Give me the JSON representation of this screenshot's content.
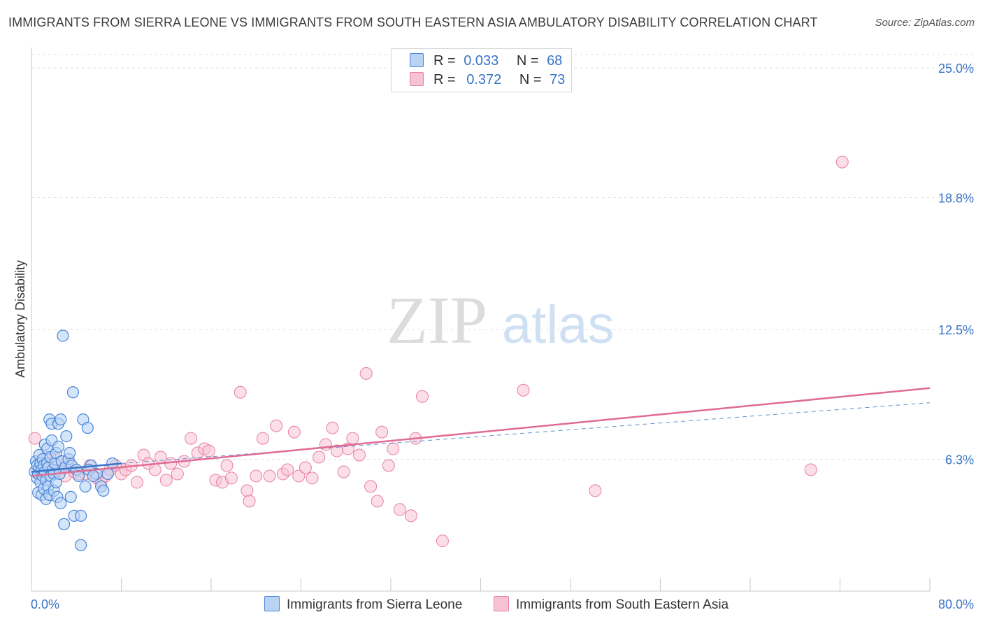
{
  "title": "IMMIGRANTS FROM SIERRA LEONE VS IMMIGRANTS FROM SOUTH EASTERN ASIA AMBULATORY DISABILITY CORRELATION CHART",
  "source": "Source: ZipAtlas.com",
  "watermark": {
    "zip": "ZIP",
    "atlas": "atlas"
  },
  "legend": {
    "r_label": "R =",
    "n_label": "N =",
    "rows": [
      {
        "r": "0.033",
        "n": "68"
      },
      {
        "r": "0.372",
        "n": "73"
      }
    ]
  },
  "colors": {
    "blue_fill": "#b9d3f5",
    "blue_stroke": "#4a86d8",
    "blue_line": "#3a74c6",
    "pink_fill": "#f7c3d3",
    "pink_stroke": "#e87fa3",
    "pink_line": "#e06b96",
    "tick_label": "#3a74c6",
    "grid": "#e2e2e2"
  },
  "chart_data": {
    "type": "scatter",
    "title": "IMMIGRANTS FROM SIERRA LEONE VS IMMIGRANTS FROM SOUTH EASTERN ASIA AMBULATORY DISABILITY CORRELATION CHART",
    "xlabel": "",
    "ylabel": "Ambulatory Disability",
    "xlim": [
      0,
      80
    ],
    "ylim": [
      0,
      25
    ],
    "x_tick_labels": [
      "0.0%",
      "80.0%"
    ],
    "y_ticks": [
      6.3,
      12.5,
      18.8,
      25.0
    ],
    "y_tick_labels": [
      "6.3%",
      "12.5%",
      "18.8%",
      "25.0%"
    ],
    "grid": true,
    "legend_position": "top-center",
    "series": [
      {
        "name": "Immigrants from Sierra Leone",
        "trend": {
          "x": [
            0,
            8
          ],
          "y": [
            5.7,
            6.1
          ],
          "extended_to": [
            80,
            9.0
          ]
        },
        "points": [
          [
            0.3,
            5.7
          ],
          [
            0.4,
            6.2
          ],
          [
            0.5,
            5.4
          ],
          [
            0.5,
            6.0
          ],
          [
            0.6,
            4.7
          ],
          [
            0.6,
            5.6
          ],
          [
            0.7,
            5.9
          ],
          [
            0.7,
            6.5
          ],
          [
            0.8,
            5.2
          ],
          [
            0.8,
            6.1
          ],
          [
            0.9,
            4.6
          ],
          [
            0.9,
            5.8
          ],
          [
            1.0,
            5.5
          ],
          [
            1.0,
            6.3
          ],
          [
            1.1,
            4.9
          ],
          [
            1.1,
            6.0
          ],
          [
            1.2,
            5.7
          ],
          [
            1.2,
            7.0
          ],
          [
            1.3,
            4.4
          ],
          [
            1.3,
            5.3
          ],
          [
            1.4,
            6.1
          ],
          [
            1.4,
            6.8
          ],
          [
            1.5,
            5.0
          ],
          [
            1.5,
            5.9
          ],
          [
            1.6,
            4.6
          ],
          [
            1.6,
            8.2
          ],
          [
            1.7,
            5.5
          ],
          [
            1.7,
            6.4
          ],
          [
            1.8,
            7.2
          ],
          [
            1.8,
            8.0
          ],
          [
            1.9,
            5.8
          ],
          [
            2.0,
            4.8
          ],
          [
            2.0,
            5.6
          ],
          [
            2.1,
            6.1
          ],
          [
            2.2,
            5.2
          ],
          [
            2.2,
            6.6
          ],
          [
            2.3,
            4.5
          ],
          [
            2.4,
            6.9
          ],
          [
            2.4,
            8.0
          ],
          [
            2.5,
            5.6
          ],
          [
            2.6,
            4.2
          ],
          [
            2.6,
            8.2
          ],
          [
            2.7,
            6.2
          ],
          [
            2.8,
            12.2
          ],
          [
            2.9,
            3.2
          ],
          [
            3.0,
            5.9
          ],
          [
            3.1,
            7.4
          ],
          [
            3.3,
            6.3
          ],
          [
            3.4,
            6.6
          ],
          [
            3.5,
            4.5
          ],
          [
            3.6,
            6.0
          ],
          [
            3.7,
            9.5
          ],
          [
            3.8,
            3.6
          ],
          [
            4.0,
            5.8
          ],
          [
            4.2,
            5.5
          ],
          [
            4.4,
            2.2
          ],
          [
            4.4,
            3.6
          ],
          [
            4.6,
            8.2
          ],
          [
            4.8,
            5.0
          ],
          [
            5.0,
            7.8
          ],
          [
            5.3,
            6.0
          ],
          [
            5.8,
            5.6
          ],
          [
            6.2,
            5.0
          ],
          [
            6.4,
            4.8
          ],
          [
            6.8,
            5.6
          ],
          [
            7.2,
            6.1
          ],
          [
            5.1,
            5.8
          ],
          [
            5.5,
            5.5
          ]
        ]
      },
      {
        "name": "Immigrants from South Eastern Asia",
        "trend": {
          "x": [
            0,
            80
          ],
          "y": [
            5.5,
            9.7
          ]
        },
        "points": [
          [
            0.3,
            7.3
          ],
          [
            1.0,
            5.9
          ],
          [
            1.4,
            6.4
          ],
          [
            1.8,
            6.0
          ],
          [
            2.2,
            6.3
          ],
          [
            2.6,
            5.8
          ],
          [
            3.0,
            5.5
          ],
          [
            3.4,
            6.1
          ],
          [
            3.8,
            5.7
          ],
          [
            4.2,
            5.6
          ],
          [
            4.8,
            5.6
          ],
          [
            5.2,
            6.0
          ],
          [
            5.8,
            5.4
          ],
          [
            6.2,
            5.2
          ],
          [
            6.6,
            5.5
          ],
          [
            7.0,
            5.8
          ],
          [
            7.5,
            6.0
          ],
          [
            8.0,
            5.6
          ],
          [
            8.4,
            5.8
          ],
          [
            8.9,
            6.0
          ],
          [
            9.4,
            5.2
          ],
          [
            10.0,
            6.5
          ],
          [
            10.4,
            6.1
          ],
          [
            11.0,
            5.8
          ],
          [
            11.5,
            6.4
          ],
          [
            12.0,
            5.3
          ],
          [
            12.4,
            6.1
          ],
          [
            13.0,
            5.6
          ],
          [
            13.6,
            6.2
          ],
          [
            14.2,
            7.3
          ],
          [
            14.8,
            6.6
          ],
          [
            15.4,
            6.8
          ],
          [
            15.8,
            6.7
          ],
          [
            16.4,
            5.3
          ],
          [
            17.0,
            5.2
          ],
          [
            17.4,
            6.0
          ],
          [
            17.8,
            5.4
          ],
          [
            18.6,
            9.5
          ],
          [
            19.2,
            4.8
          ],
          [
            19.4,
            4.3
          ],
          [
            20.0,
            5.5
          ],
          [
            20.6,
            7.3
          ],
          [
            21.2,
            5.5
          ],
          [
            21.8,
            7.9
          ],
          [
            22.4,
            5.6
          ],
          [
            22.8,
            5.8
          ],
          [
            23.4,
            7.6
          ],
          [
            23.8,
            5.5
          ],
          [
            24.4,
            5.9
          ],
          [
            25.0,
            5.4
          ],
          [
            25.6,
            6.4
          ],
          [
            26.2,
            7.0
          ],
          [
            26.8,
            7.8
          ],
          [
            27.2,
            6.7
          ],
          [
            27.8,
            5.7
          ],
          [
            28.2,
            6.8
          ],
          [
            28.6,
            7.3
          ],
          [
            29.2,
            6.5
          ],
          [
            29.8,
            10.4
          ],
          [
            30.2,
            5.0
          ],
          [
            30.8,
            4.3
          ],
          [
            31.2,
            7.6
          ],
          [
            31.8,
            6.0
          ],
          [
            32.2,
            6.8
          ],
          [
            32.8,
            3.9
          ],
          [
            33.8,
            3.6
          ],
          [
            34.2,
            7.3
          ],
          [
            34.8,
            9.3
          ],
          [
            36.6,
            2.4
          ],
          [
            43.8,
            9.6
          ],
          [
            50.2,
            4.8
          ],
          [
            69.4,
            5.8
          ],
          [
            72.2,
            20.5
          ]
        ]
      }
    ]
  },
  "bottom_legend": [
    "Immigrants from Sierra Leone",
    "Immigrants from South Eastern Asia"
  ]
}
